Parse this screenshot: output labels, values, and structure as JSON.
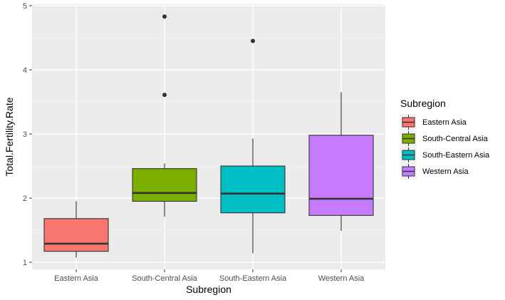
{
  "chart_data": {
    "type": "box",
    "xlabel": "Subregion",
    "ylabel": "Total.Fertility.Rate",
    "ylim": [
      0.95,
      5.0
    ],
    "yticks": [
      1,
      2,
      3,
      4,
      5
    ],
    "grid": true,
    "legend": {
      "title": "Subregion",
      "position": "right"
    },
    "categories": [
      "Eastern Asia",
      "South-Central Asia",
      "South-Eastern Asia",
      "Western Asia"
    ],
    "series": [
      {
        "name": "Eastern Asia",
        "color": "#F8766D",
        "lower_whisker": 1.07,
        "q1": 1.17,
        "median": 1.29,
        "q3": 1.68,
        "upper_whisker": 1.95,
        "outliers": []
      },
      {
        "name": "South-Central Asia",
        "color": "#7CAE00",
        "lower_whisker": 1.71,
        "q1": 1.95,
        "median": 2.08,
        "q3": 2.46,
        "upper_whisker": 2.54,
        "outliers": [
          3.61,
          4.83
        ]
      },
      {
        "name": "South-Eastern Asia",
        "color": "#00BFC4",
        "lower_whisker": 1.14,
        "q1": 1.77,
        "median": 2.07,
        "q3": 2.5,
        "upper_whisker": 2.93,
        "outliers": [
          4.45
        ]
      },
      {
        "name": "Western Asia",
        "color": "#C77CFF",
        "lower_whisker": 1.49,
        "q1": 1.73,
        "median": 1.99,
        "q3": 2.98,
        "upper_whisker": 3.65,
        "outliers": []
      }
    ]
  }
}
